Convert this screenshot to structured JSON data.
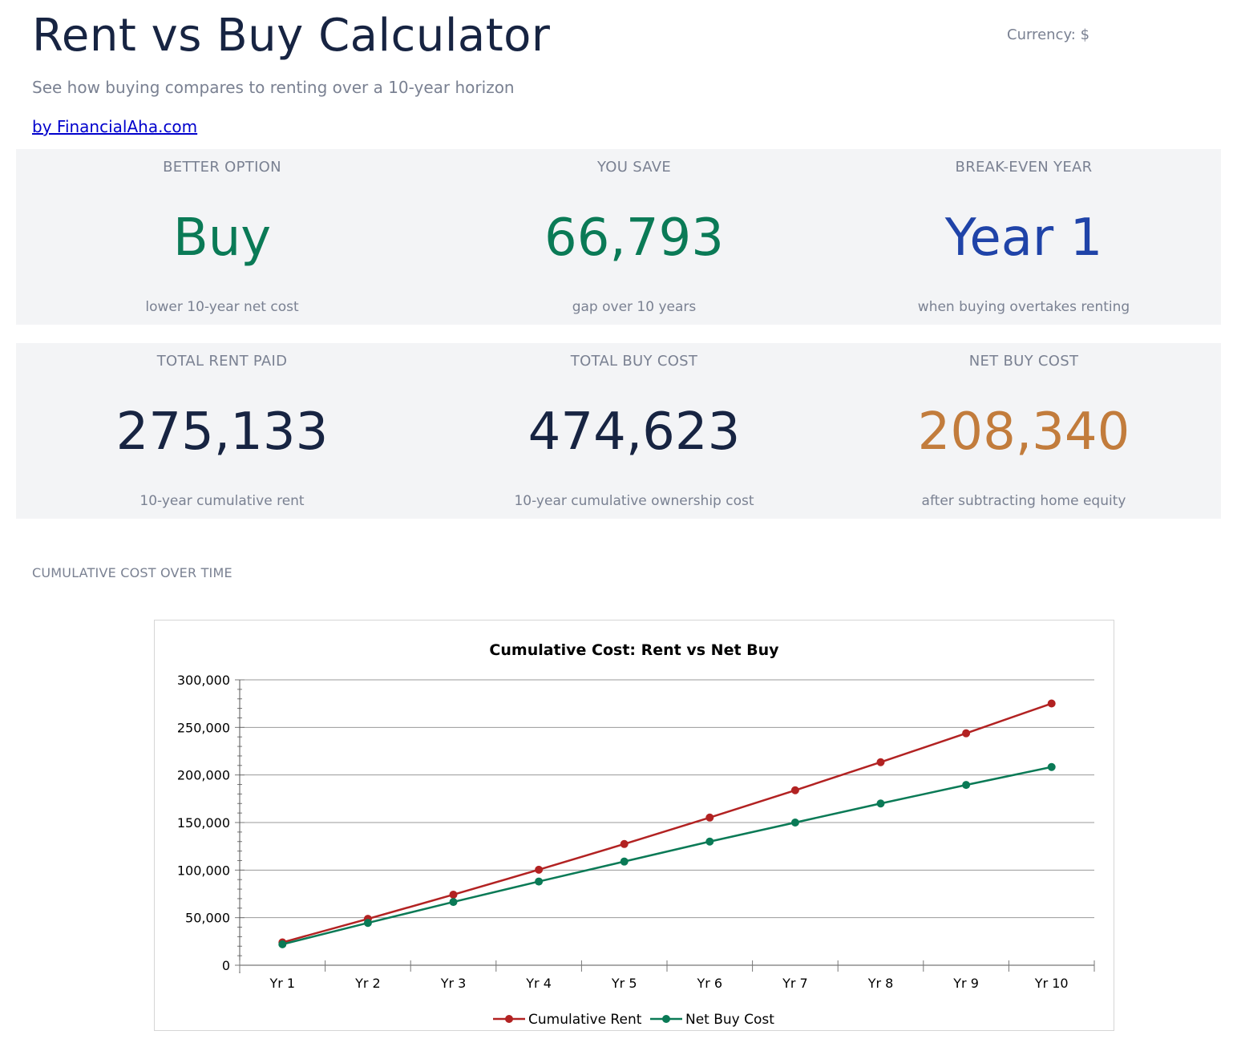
{
  "header": {
    "title": "Rent vs Buy Calculator",
    "currency": "Currency: $",
    "subtitle": "See how buying compares to renting over a 10-year horizon",
    "byline": "by FinancialAha.com"
  },
  "summary": [
    {
      "label": "BETTER OPTION",
      "value": "Buy",
      "sub": "lower 10-year net cost",
      "color": "#0a7a56"
    },
    {
      "label": "YOU SAVE",
      "value": "66,793",
      "sub": "gap over 10 years",
      "color": "#0a7a56"
    },
    {
      "label": "BREAK-EVEN YEAR",
      "value": "Year 1",
      "sub": "when buying overtakes renting",
      "color": "#1f43a8"
    }
  ],
  "totals": [
    {
      "label": "TOTAL RENT PAID",
      "value": "275,133",
      "sub": "10-year cumulative rent",
      "color": "#172442"
    },
    {
      "label": "TOTAL BUY COST",
      "value": "474,623",
      "sub": "10-year cumulative ownership cost",
      "color": "#172442"
    },
    {
      "label": "NET BUY COST",
      "value": "208,340",
      "sub": "after subtracting home equity",
      "color": "#c27c3c"
    }
  ],
  "section_title": "CUMULATIVE COST OVER TIME",
  "chart_data": {
    "type": "line",
    "title": "Cumulative Cost: Rent vs Net Buy",
    "xlabel": "",
    "ylabel": "",
    "categories": [
      "Yr 1",
      "Yr 2",
      "Yr 3",
      "Yr 4",
      "Yr 5",
      "Yr 6",
      "Yr 7",
      "Yr 8",
      "Yr 9",
      "Yr 10"
    ],
    "ylim": [
      0,
      300000
    ],
    "yticks": [
      0,
      50000,
      100000,
      150000,
      200000,
      250000,
      300000
    ],
    "ytick_labels": [
      "0",
      "50,000",
      "100,000",
      "150,000",
      "200,000",
      "250,000",
      "300,000"
    ],
    "grid": true,
    "legend": "bottom",
    "series": [
      {
        "name": "Cumulative Rent",
        "color": "#b22222",
        "values": [
          24000,
          48720,
          74181,
          100406,
          127418,
          155241,
          183899,
          213418,
          243823,
          275133
        ]
      },
      {
        "name": "Net Buy Cost",
        "color": "#0a7a56",
        "values": [
          22000,
          44500,
          66500,
          88000,
          109000,
          130000,
          150000,
          170000,
          189500,
          208340
        ]
      }
    ]
  }
}
